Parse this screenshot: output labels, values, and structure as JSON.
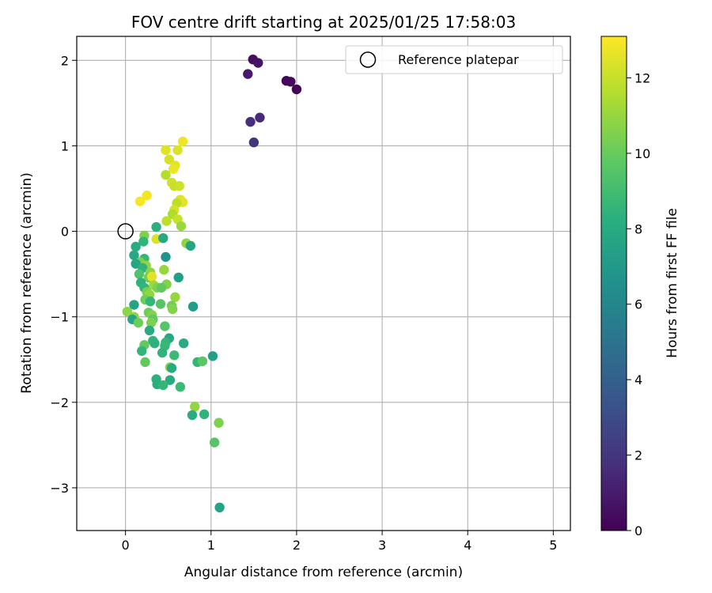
{
  "chart_data": {
    "type": "scatter",
    "title": "FOV centre drift starting at 2025/01/25 17:58:03",
    "xlabel": "Angular distance from reference (arcmin)",
    "ylabel": "Rotation from reference (arcmin)",
    "xlim": [
      -0.57,
      5.2
    ],
    "ylim": [
      -3.5,
      2.28
    ],
    "xticks": [
      0,
      1,
      2,
      3,
      4,
      5
    ],
    "xtick_labels": [
      "0",
      "1",
      "2",
      "3",
      "4",
      "5"
    ],
    "yticks": [
      -3,
      -2,
      -1,
      0,
      1,
      2
    ],
    "ytick_labels": [
      "−3",
      "−2",
      "−1",
      "0",
      "1",
      "2"
    ],
    "grid": true,
    "legend": {
      "placement": "top-right",
      "entries": [
        "Reference platepar"
      ]
    },
    "reference_point": {
      "x": 0,
      "y": 0,
      "label": "Reference platepar"
    },
    "colorbar": {
      "label": "Hours from first FF file",
      "colormap": "viridis",
      "range": [
        0,
        13.1
      ],
      "ticks": [
        0,
        2,
        4,
        6,
        8,
        10,
        12
      ],
      "tick_labels": [
        "0",
        "2",
        "4",
        "6",
        "8",
        "10",
        "12"
      ]
    },
    "series": [
      {
        "points": [
          {
            "x": 1.49,
            "y": 2.01,
            "c": 0.5
          },
          {
            "x": 1.55,
            "y": 1.97,
            "c": 0.7
          },
          {
            "x": 1.43,
            "y": 1.84,
            "c": 0.9
          },
          {
            "x": 1.88,
            "y": 1.76,
            "c": 0.2
          },
          {
            "x": 1.93,
            "y": 1.75,
            "c": 0.3
          },
          {
            "x": 2.0,
            "y": 1.66,
            "c": 0.1
          },
          {
            "x": 1.57,
            "y": 1.33,
            "c": 1.6
          },
          {
            "x": 1.46,
            "y": 1.28,
            "c": 1.8
          },
          {
            "x": 1.5,
            "y": 1.04,
            "c": 2.0
          },
          {
            "x": 0.67,
            "y": 1.05,
            "c": 12.8
          },
          {
            "x": 0.47,
            "y": 0.95,
            "c": 12.5
          },
          {
            "x": 0.61,
            "y": 0.95,
            "c": 12.4
          },
          {
            "x": 0.51,
            "y": 0.84,
            "c": 12.3
          },
          {
            "x": 0.58,
            "y": 0.77,
            "c": 12.6
          },
          {
            "x": 0.56,
            "y": 0.73,
            "c": 12.7
          },
          {
            "x": 0.47,
            "y": 0.66,
            "c": 11.6
          },
          {
            "x": 0.54,
            "y": 0.57,
            "c": 12.2
          },
          {
            "x": 0.57,
            "y": 0.53,
            "c": 12.0
          },
          {
            "x": 0.63,
            "y": 0.53,
            "c": 12.1
          },
          {
            "x": 0.25,
            "y": 0.42,
            "c": 12.9
          },
          {
            "x": 0.17,
            "y": 0.35,
            "c": 13.0
          },
          {
            "x": 0.64,
            "y": 0.37,
            "c": 12.5
          },
          {
            "x": 0.67,
            "y": 0.34,
            "c": 12.6
          },
          {
            "x": 0.6,
            "y": 0.33,
            "c": 11.8
          },
          {
            "x": 0.57,
            "y": 0.25,
            "c": 12.3
          },
          {
            "x": 0.55,
            "y": 0.2,
            "c": 11.5
          },
          {
            "x": 0.48,
            "y": 0.12,
            "c": 11.8
          },
          {
            "x": 0.61,
            "y": 0.14,
            "c": 12.0
          },
          {
            "x": 0.65,
            "y": 0.06,
            "c": 11.1
          },
          {
            "x": 0.36,
            "y": 0.05,
            "c": 8.2
          },
          {
            "x": 0.22,
            "y": -0.05,
            "c": 10.5
          },
          {
            "x": 0.36,
            "y": -0.09,
            "c": 12.4
          },
          {
            "x": 0.44,
            "y": -0.08,
            "c": 7.9
          },
          {
            "x": 0.21,
            "y": -0.12,
            "c": 8.6
          },
          {
            "x": 0.71,
            "y": -0.14,
            "c": 10.8
          },
          {
            "x": 0.76,
            "y": -0.17,
            "c": 7.7
          },
          {
            "x": 0.12,
            "y": -0.18,
            "c": 8.1
          },
          {
            "x": 0.1,
            "y": -0.28,
            "c": 7.8
          },
          {
            "x": 0.47,
            "y": -0.3,
            "c": 6.8
          },
          {
            "x": 0.22,
            "y": -0.32,
            "c": 8.7
          },
          {
            "x": 0.17,
            "y": -0.36,
            "c": 10.4
          },
          {
            "x": 0.12,
            "y": -0.38,
            "c": 7.7
          },
          {
            "x": 0.24,
            "y": -0.4,
            "c": 10.9
          },
          {
            "x": 0.2,
            "y": -0.43,
            "c": 8.4
          },
          {
            "x": 0.45,
            "y": -0.45,
            "c": 11.0
          },
          {
            "x": 0.29,
            "y": -0.48,
            "c": 10.8
          },
          {
            "x": 0.16,
            "y": -0.5,
            "c": 9.4
          },
          {
            "x": 0.27,
            "y": -0.54,
            "c": 10.2
          },
          {
            "x": 0.31,
            "y": -0.53,
            "c": 12.6
          },
          {
            "x": 0.62,
            "y": -0.54,
            "c": 7.4
          },
          {
            "x": 0.18,
            "y": -0.6,
            "c": 8.4
          },
          {
            "x": 0.33,
            "y": -0.63,
            "c": 11.2
          },
          {
            "x": 0.48,
            "y": -0.62,
            "c": 10.6
          },
          {
            "x": 0.22,
            "y": -0.66,
            "c": 8.6
          },
          {
            "x": 0.37,
            "y": -0.66,
            "c": 10.5
          },
          {
            "x": 0.42,
            "y": -0.66,
            "c": 9.8
          },
          {
            "x": 0.25,
            "y": -0.71,
            "c": 10.4
          },
          {
            "x": 0.28,
            "y": -0.74,
            "c": 10.9
          },
          {
            "x": 0.58,
            "y": -0.77,
            "c": 11.0
          },
          {
            "x": 0.23,
            "y": -0.8,
            "c": 10.1
          },
          {
            "x": 0.29,
            "y": -0.82,
            "c": 8.7
          },
          {
            "x": 0.41,
            "y": -0.85,
            "c": 9.6
          },
          {
            "x": 0.1,
            "y": -0.86,
            "c": 7.6
          },
          {
            "x": 0.54,
            "y": -0.87,
            "c": 10.3
          },
          {
            "x": 0.79,
            "y": -0.88,
            "c": 7.3
          },
          {
            "x": 0.55,
            "y": -0.91,
            "c": 10.6
          },
          {
            "x": 0.02,
            "y": -0.94,
            "c": 10.8
          },
          {
            "x": 0.27,
            "y": -0.95,
            "c": 10.1
          },
          {
            "x": 0.31,
            "y": -0.98,
            "c": 10.6
          },
          {
            "x": 0.1,
            "y": -1.0,
            "c": 10.9
          },
          {
            "x": 0.32,
            "y": -1.03,
            "c": 9.8
          },
          {
            "x": 0.08,
            "y": -1.03,
            "c": 7.7
          },
          {
            "x": 0.15,
            "y": -1.07,
            "c": 10.1
          },
          {
            "x": 0.3,
            "y": -1.07,
            "c": 10.5
          },
          {
            "x": 0.46,
            "y": -1.11,
            "c": 9.6
          },
          {
            "x": 0.28,
            "y": -1.16,
            "c": 8.0
          },
          {
            "x": 0.32,
            "y": -1.28,
            "c": 8.7
          },
          {
            "x": 0.51,
            "y": -1.25,
            "c": 7.8
          },
          {
            "x": 0.47,
            "y": -1.3,
            "c": 8.6
          },
          {
            "x": 0.34,
            "y": -1.31,
            "c": 8.3
          },
          {
            "x": 0.68,
            "y": -1.31,
            "c": 8.0
          },
          {
            "x": 0.22,
            "y": -1.33,
            "c": 9.9
          },
          {
            "x": 0.46,
            "y": -1.34,
            "c": 8.8
          },
          {
            "x": 0.19,
            "y": -1.4,
            "c": 8.6
          },
          {
            "x": 0.43,
            "y": -1.42,
            "c": 8.4
          },
          {
            "x": 0.57,
            "y": -1.45,
            "c": 8.9
          },
          {
            "x": 1.02,
            "y": -1.46,
            "c": 7.4
          },
          {
            "x": 0.84,
            "y": -1.53,
            "c": 8.7
          },
          {
            "x": 0.9,
            "y": -1.52,
            "c": 9.7
          },
          {
            "x": 0.23,
            "y": -1.53,
            "c": 9.9
          },
          {
            "x": 0.52,
            "y": -1.59,
            "c": 10.8
          },
          {
            "x": 0.54,
            "y": -1.6,
            "c": 8.0
          },
          {
            "x": 0.36,
            "y": -1.73,
            "c": 8.3
          },
          {
            "x": 0.52,
            "y": -1.74,
            "c": 8.0
          },
          {
            "x": 0.37,
            "y": -1.79,
            "c": 8.2
          },
          {
            "x": 0.44,
            "y": -1.8,
            "c": 8.7
          },
          {
            "x": 0.64,
            "y": -1.82,
            "c": 8.9
          },
          {
            "x": 0.81,
            "y": -2.05,
            "c": 10.9
          },
          {
            "x": 0.78,
            "y": -2.15,
            "c": 8.1
          },
          {
            "x": 0.92,
            "y": -2.14,
            "c": 8.5
          },
          {
            "x": 1.09,
            "y": -2.24,
            "c": 10.5
          },
          {
            "x": 1.04,
            "y": -2.47,
            "c": 9.6
          },
          {
            "x": 1.1,
            "y": -3.23,
            "c": 7.6
          }
        ]
      }
    ]
  }
}
